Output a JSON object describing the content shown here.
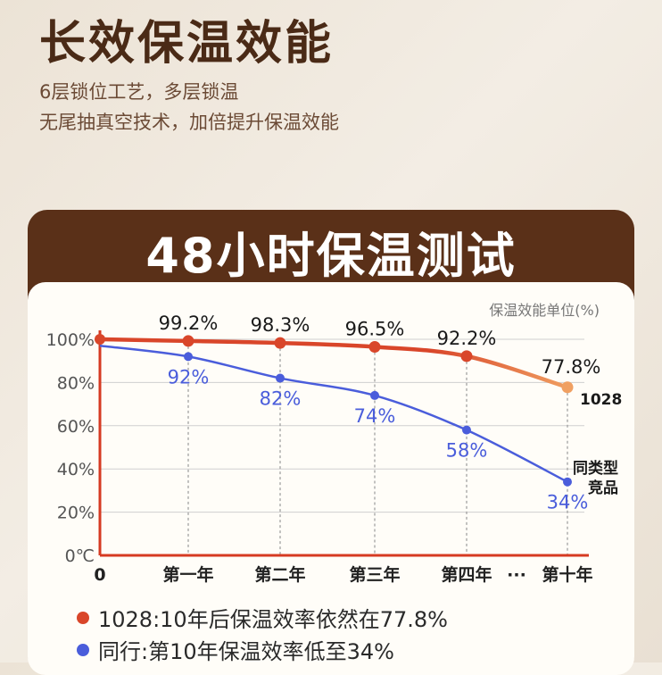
{
  "header": {
    "title": "长效保温效能",
    "subtitle_line1": "6层锁位工艺，多层锁温",
    "subtitle_line2": "无尾抽真空技术，加倍提升保温效能"
  },
  "panel": {
    "title": "48小时保温测试"
  },
  "chart_data": {
    "type": "line",
    "unit_note": "保温效能单位(%)",
    "categories": [
      "0",
      "第一年",
      "第二年",
      "第三年",
      "第四年",
      "第十年"
    ],
    "ellipsis_label": "···",
    "y_ticks": [
      "0℃",
      "20%",
      "40%",
      "60%",
      "80%",
      "100%"
    ],
    "y_tick_values": [
      0,
      20,
      40,
      60,
      80,
      100
    ],
    "ylim": [
      0,
      100
    ],
    "grid": true,
    "series": [
      {
        "name": "1028",
        "color": "#d9462a",
        "end_color": "#f0a062",
        "values": [
          100,
          99.2,
          98.3,
          96.5,
          92.2,
          77.8
        ],
        "labels": [
          "",
          "99.2%",
          "98.3%",
          "96.5%",
          "92.2%",
          "77.8%"
        ]
      },
      {
        "name": "同类型 竞品",
        "name_line1": "同类型",
        "name_line2": "竞品",
        "color": "#4a5ddb",
        "values": [
          97,
          92,
          82,
          74,
          58,
          34
        ],
        "labels": [
          "",
          "92%",
          "82%",
          "74%",
          "58%",
          "34%"
        ]
      }
    ]
  },
  "legend": {
    "item1": {
      "text": "1028:10年后保温效率依然在77.8%",
      "color": "#d9462a"
    },
    "item2": {
      "text": "同行:第10年保温效率低至34%",
      "color": "#4a5ddb"
    }
  }
}
